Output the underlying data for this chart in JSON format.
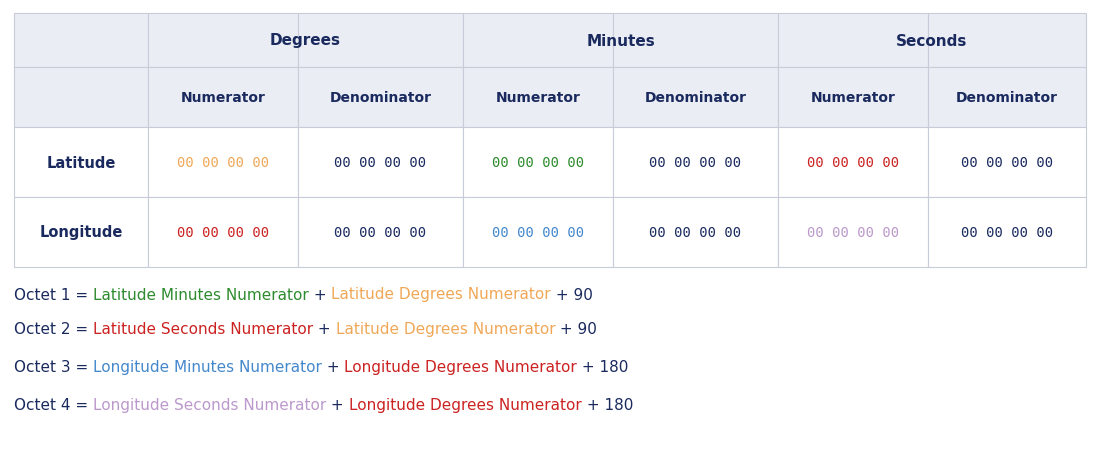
{
  "bg_color": "#ffffff",
  "table_header_bg": "#eaedf4",
  "table_row_bg": "#ffffff",
  "border_color": "#c8ccd8",
  "header_text_color": "#1a2a5e",
  "default_cell_color": "#1a2a5e",
  "lat_deg_num_color": "#f0a858",
  "lat_min_num_color": "#2e8b2e",
  "lat_sec_num_color": "#cc2222",
  "lon_deg_num_color": "#cc2222",
  "lon_min_num_color": "#4488cc",
  "lon_sec_num_color": "#bb99cc",
  "annotations": [
    [
      {
        "text": "Octet 1 = ",
        "color": "#1a2a5e"
      },
      {
        "text": "Latitude Minutes Numerator",
        "color": "#2e8b2e"
      },
      {
        "text": " + ",
        "color": "#1a2a5e"
      },
      {
        "text": "Latitude Degrees Numerator",
        "color": "#f0a858"
      },
      {
        "text": " + 90",
        "color": "#1a2a5e"
      }
    ],
    [
      {
        "text": "Octet 2 = ",
        "color": "#1a2a5e"
      },
      {
        "text": "Latitude Seconds Numerator",
        "color": "#cc2222"
      },
      {
        "text": " + ",
        "color": "#1a2a5e"
      },
      {
        "text": "Latitude Degrees Numerator",
        "color": "#f0a858"
      },
      {
        "text": " + 90",
        "color": "#1a2a5e"
      }
    ],
    [
      {
        "text": "Octet 3 = ",
        "color": "#1a2a5e"
      },
      {
        "text": "Longitude Minutes Numerator",
        "color": "#4488cc"
      },
      {
        "text": " + ",
        "color": "#1a2a5e"
      },
      {
        "text": "Longitude Degrees Numerator",
        "color": "#cc2222"
      },
      {
        "text": " + 180",
        "color": "#1a2a5e"
      }
    ],
    [
      {
        "text": "Octet 4 = ",
        "color": "#1a2a5e"
      },
      {
        "text": "Longitude Seconds Numerator",
        "color": "#bb99cc"
      },
      {
        "text": " + ",
        "color": "#1a2a5e"
      },
      {
        "text": "Longitude Degrees Numerator",
        "color": "#cc2222"
      },
      {
        "text": " + 180",
        "color": "#1a2a5e"
      }
    ]
  ]
}
